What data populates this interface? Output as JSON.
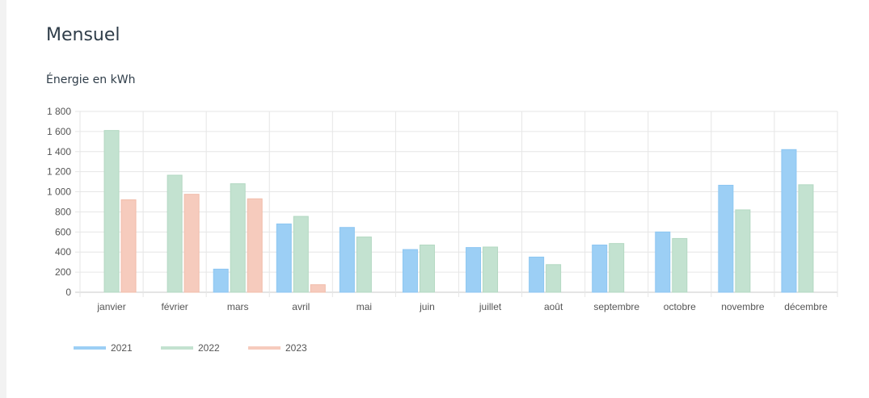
{
  "header": {
    "title": "Mensuel",
    "subtitle": "Énergie en kWh"
  },
  "chart_data": {
    "type": "bar",
    "categories": [
      "janvier",
      "février",
      "mars",
      "avril",
      "mai",
      "juin",
      "juillet",
      "août",
      "septembre",
      "octobre",
      "novembre",
      "décembre"
    ],
    "series": [
      {
        "name": "2021",
        "color": "#9ccff5",
        "stroke": "#8cc6f2",
        "values": [
          null,
          null,
          230,
          680,
          645,
          425,
          445,
          350,
          470,
          600,
          1065,
          1420
        ]
      },
      {
        "name": "2022",
        "color": "#c3e2d0",
        "stroke": "#b3d8c2",
        "values": [
          1610,
          1165,
          1080,
          755,
          550,
          470,
          450,
          275,
          485,
          535,
          820,
          1070
        ]
      },
      {
        "name": "2023",
        "color": "#f6cbbd",
        "stroke": "#f1bcaa",
        "values": [
          920,
          975,
          930,
          75,
          null,
          null,
          null,
          null,
          null,
          null,
          null,
          null
        ]
      }
    ],
    "ylim": [
      0,
      1800
    ],
    "yticks": [
      "0",
      "200",
      "400",
      "600",
      "800",
      "1 000",
      "1 200",
      "1 400",
      "1 600",
      "1 800"
    ],
    "ytick_values": [
      0,
      200,
      400,
      600,
      800,
      1000,
      1200,
      1400,
      1600,
      1800
    ],
    "grid": true,
    "legend": "bottom-left"
  }
}
